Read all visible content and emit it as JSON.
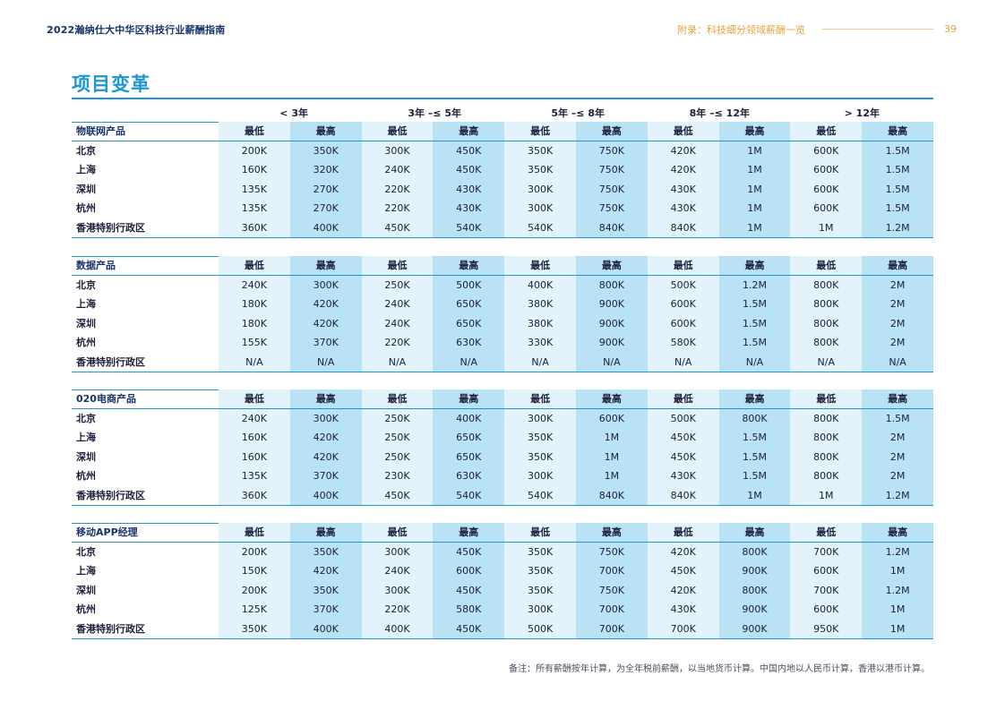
{
  "header": {
    "left": "2022瀚纳仕大中华区科技行业薪酬指南",
    "right": "附录：科技细分领域薪酬一览",
    "page_number": "39"
  },
  "title": "项目变革",
  "ranges": [
    "< 3年",
    "3年 –≤ 5年",
    "5年 –≤ 8年",
    "8年 –≤ 12年",
    "> 12年"
  ],
  "col_low": "最低",
  "col_high": "最高",
  "colors": {
    "accent": "#1d96d3",
    "light_bg": "#e2f3fb",
    "dark_bg": "#b9e3f5"
  },
  "sections": [
    {
      "name": "物联网产品",
      "rows": [
        {
          "city": "北京",
          "values": [
            "200K",
            "350K",
            "300K",
            "450K",
            "350K",
            "750K",
            "420K",
            "1M",
            "600K",
            "1.5M"
          ]
        },
        {
          "city": "上海",
          "values": [
            "160K",
            "320K",
            "240K",
            "450K",
            "350K",
            "750K",
            "420K",
            "1M",
            "600K",
            "1.5M"
          ]
        },
        {
          "city": "深圳",
          "values": [
            "135K",
            "270K",
            "220K",
            "430K",
            "300K",
            "750K",
            "430K",
            "1M",
            "600K",
            "1.5M"
          ]
        },
        {
          "city": "杭州",
          "values": [
            "135K",
            "270K",
            "220K",
            "430K",
            "300K",
            "750K",
            "430K",
            "1M",
            "600K",
            "1.5M"
          ]
        },
        {
          "city": "香港特别行政区",
          "values": [
            "360K",
            "400K",
            "450K",
            "540K",
            "540K",
            "840K",
            "840K",
            "1M",
            "1M",
            "1.2M"
          ]
        }
      ]
    },
    {
      "name": "数据产品",
      "rows": [
        {
          "city": "北京",
          "values": [
            "240K",
            "300K",
            "250K",
            "500K",
            "400K",
            "800K",
            "500K",
            "1.2M",
            "800K",
            "2M"
          ]
        },
        {
          "city": "上海",
          "values": [
            "180K",
            "420K",
            "240K",
            "650K",
            "380K",
            "900K",
            "600K",
            "1.5M",
            "800K",
            "2M"
          ]
        },
        {
          "city": "深圳",
          "values": [
            "180K",
            "420K",
            "240K",
            "650K",
            "380K",
            "900K",
            "600K",
            "1.5M",
            "800K",
            "2M"
          ]
        },
        {
          "city": "杭州",
          "values": [
            "155K",
            "370K",
            "220K",
            "630K",
            "330K",
            "900K",
            "580K",
            "1.5M",
            "800K",
            "2M"
          ]
        },
        {
          "city": "香港特别行政区",
          "values": [
            "N/A",
            "N/A",
            "N/A",
            "N/A",
            "N/A",
            "N/A",
            "N/A",
            "N/A",
            "N/A",
            "N/A"
          ]
        }
      ]
    },
    {
      "name": "020电商产品",
      "rows": [
        {
          "city": "北京",
          "values": [
            "240K",
            "300K",
            "250K",
            "400K",
            "300K",
            "600K",
            "500K",
            "800K",
            "800K",
            "1.5M"
          ]
        },
        {
          "city": "上海",
          "values": [
            "160K",
            "420K",
            "250K",
            "650K",
            "350K",
            "1M",
            "450K",
            "1.5M",
            "800K",
            "2M"
          ]
        },
        {
          "city": "深圳",
          "values": [
            "160K",
            "420K",
            "250K",
            "650K",
            "350K",
            "1M",
            "450K",
            "1.5M",
            "800K",
            "2M"
          ]
        },
        {
          "city": "杭州",
          "values": [
            "135K",
            "370K",
            "230K",
            "630K",
            "300K",
            "1M",
            "430K",
            "1.5M",
            "800K",
            "2M"
          ]
        },
        {
          "city": "香港特别行政区",
          "values": [
            "360K",
            "400K",
            "450K",
            "540K",
            "540K",
            "840K",
            "840K",
            "1M",
            "1M",
            "1.2M"
          ]
        }
      ]
    },
    {
      "name": "移动APP经理",
      "rows": [
        {
          "city": "北京",
          "values": [
            "200K",
            "350K",
            "300K",
            "450K",
            "350K",
            "750K",
            "420K",
            "800K",
            "700K",
            "1.2M"
          ]
        },
        {
          "city": "上海",
          "values": [
            "150K",
            "420K",
            "240K",
            "600K",
            "350K",
            "700K",
            "450K",
            "900K",
            "600K",
            "1M"
          ]
        },
        {
          "city": "深圳",
          "values": [
            "200K",
            "350K",
            "300K",
            "450K",
            "350K",
            "750K",
            "420K",
            "800K",
            "700K",
            "1.2M"
          ]
        },
        {
          "city": "杭州",
          "values": [
            "125K",
            "370K",
            "220K",
            "580K",
            "300K",
            "700K",
            "430K",
            "900K",
            "600K",
            "1M"
          ]
        },
        {
          "city": "香港特别行政区",
          "values": [
            "350K",
            "400K",
            "400K",
            "450K",
            "500K",
            "700K",
            "700K",
            "900K",
            "950K",
            "1M"
          ]
        }
      ]
    }
  ],
  "footnote": "备注：所有薪酬按年计算，为全年税前薪酬，以当地货币计算。中国内地以人民币计算，香港以港币计算。"
}
